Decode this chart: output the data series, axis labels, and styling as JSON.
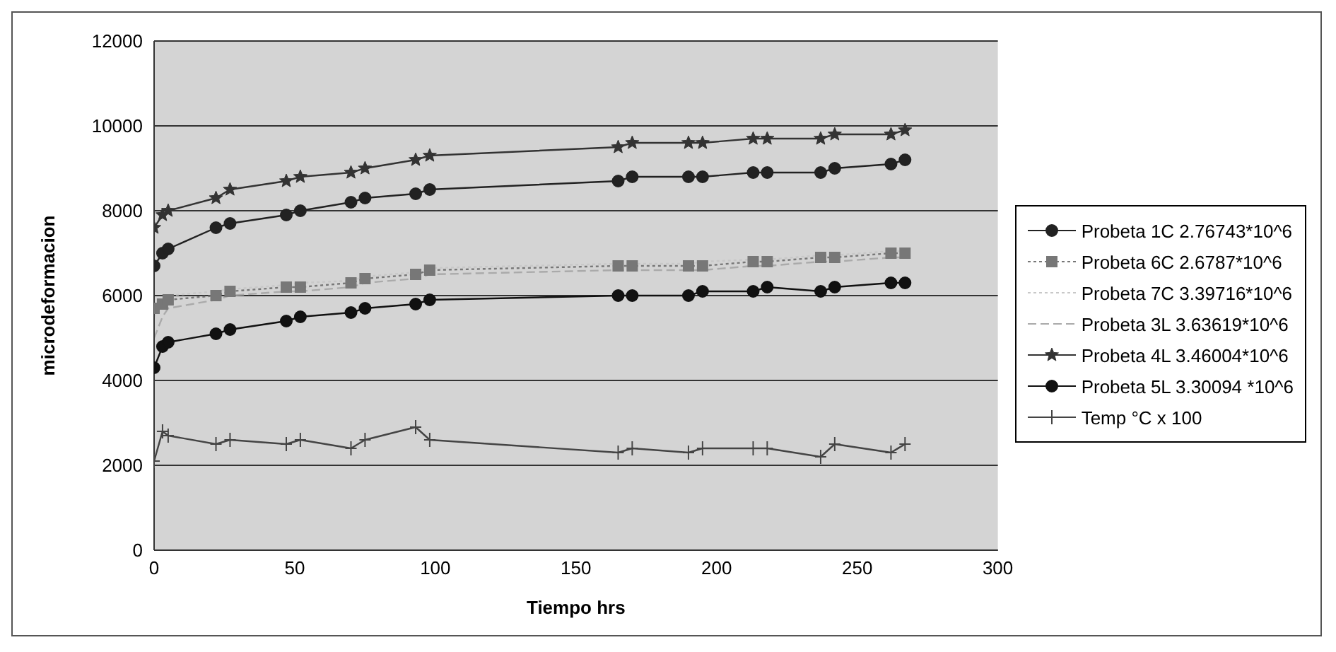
{
  "chart_data": {
    "type": "line",
    "xlabel": "Tiempo hrs",
    "ylabel": "microdeformacion",
    "x": [
      0,
      3,
      5,
      22,
      27,
      47,
      52,
      70,
      75,
      93,
      98,
      165,
      170,
      190,
      195,
      213,
      218,
      237,
      242,
      262,
      267
    ],
    "xlim": [
      0,
      300
    ],
    "xticks": [
      0,
      50,
      100,
      150,
      200,
      250,
      300
    ],
    "ylim": [
      0,
      12000
    ],
    "yticks": [
      0,
      2000,
      4000,
      6000,
      8000,
      10000,
      12000
    ],
    "grid": "y",
    "legend": "right",
    "series": [
      {
        "name": "Probeta 1C  2.76743*10^6",
        "color": "#222222",
        "marker": "circle",
        "line_style": "solid",
        "values": [
          6700,
          7000,
          7100,
          7600,
          7700,
          7900,
          8000,
          8200,
          8300,
          8400,
          8500,
          8700,
          8800,
          8800,
          8800,
          8900,
          8900,
          8900,
          9000,
          9100,
          9200
        ]
      },
      {
        "name": "Probeta 6C 2.6787*10^6",
        "color": "#777777",
        "marker": "square",
        "line_style": "dotted",
        "values": [
          5700,
          5800,
          5900,
          6000,
          6100,
          6200,
          6200,
          6300,
          6400,
          6500,
          6600,
          6700,
          6700,
          6700,
          6700,
          6800,
          6800,
          6900,
          6900,
          7000,
          7000
        ]
      },
      {
        "name": "Probeta 7C 3.39716*10^6",
        "color": "#c8c8c8",
        "marker": "none",
        "line_style": "dotted",
        "values": [
          5500,
          5900,
          6000,
          6100,
          6150,
          6250,
          6300,
          6350,
          6450,
          6550,
          6650,
          6750,
          6750,
          6750,
          6800,
          6850,
          6850,
          6950,
          6950,
          7050,
          7050
        ]
      },
      {
        "name": "Probeta 3L 3.63619*10^6",
        "color": "#aaaaaa",
        "marker": "none",
        "line_style": "dashed",
        "values": [
          5000,
          5500,
          5700,
          5900,
          6000,
          6100,
          6100,
          6200,
          6300,
          6400,
          6500,
          6600,
          6600,
          6600,
          6600,
          6700,
          6700,
          6800,
          6800,
          6900,
          6900
        ]
      },
      {
        "name": "Probeta 4L 3.46004*10^6",
        "color": "#333333",
        "marker": "star",
        "line_style": "solid",
        "values": [
          7600,
          7900,
          8000,
          8300,
          8500,
          8700,
          8800,
          8900,
          9000,
          9200,
          9300,
          9500,
          9600,
          9600,
          9600,
          9700,
          9700,
          9700,
          9800,
          9800,
          9900
        ]
      },
      {
        "name": "Probeta 5L 3.30094 *10^6",
        "color": "#111111",
        "marker": "circle",
        "line_style": "solid",
        "values": [
          4300,
          4800,
          4900,
          5100,
          5200,
          5400,
          5500,
          5600,
          5700,
          5800,
          5900,
          6000,
          6000,
          6000,
          6100,
          6100,
          6200,
          6100,
          6200,
          6300,
          6300
        ]
      },
      {
        "name": "Temp °C x 100",
        "color": "#444444",
        "marker": "cross",
        "line_style": "solid",
        "values": [
          2100,
          2800,
          2700,
          2500,
          2600,
          2500,
          2600,
          2400,
          2600,
          2900,
          2600,
          2300,
          2400,
          2300,
          2400,
          2400,
          2400,
          2200,
          2500,
          2300,
          2500
        ]
      }
    ]
  }
}
